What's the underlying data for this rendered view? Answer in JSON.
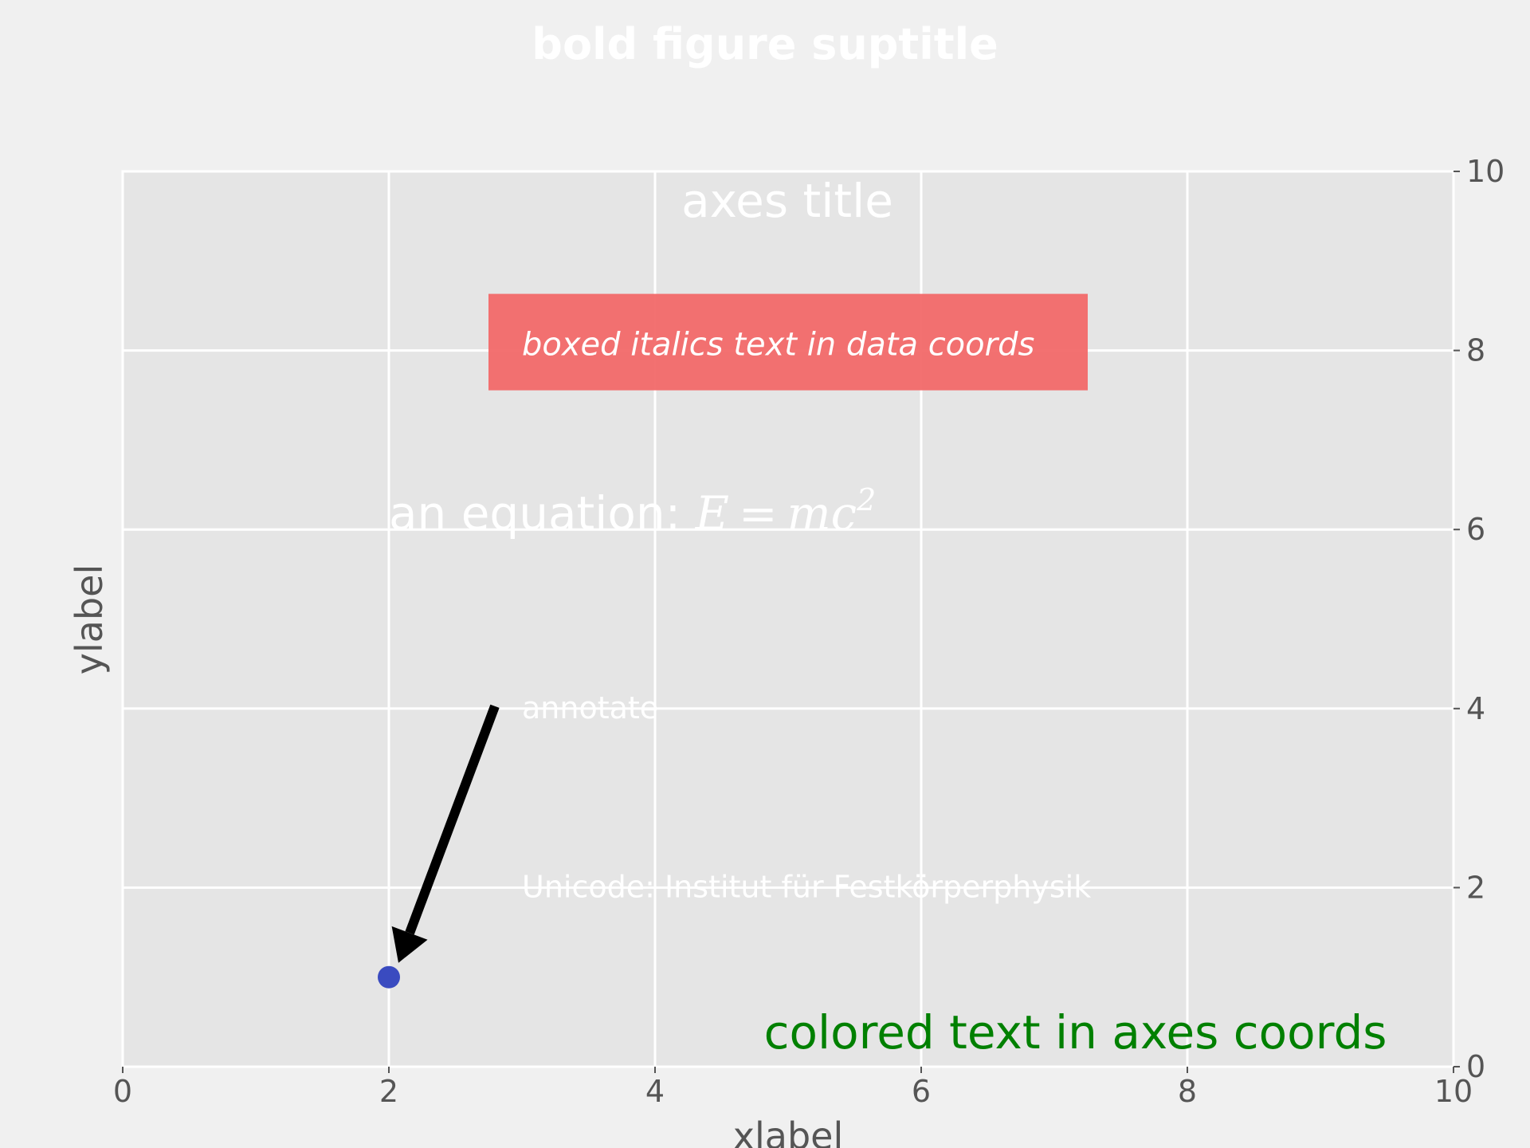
{
  "chart_data": {
    "type": "scatter",
    "suptitle": "bold figure suptitle",
    "title": "axes title",
    "xlabel": "xlabel",
    "ylabel": "ylabel",
    "xlim": [
      0,
      10
    ],
    "ylim": [
      0,
      10
    ],
    "x_ticks": [
      0,
      2,
      4,
      6,
      8,
      10
    ],
    "y_ticks": [
      0,
      2,
      4,
      6,
      8,
      10
    ],
    "x_tick_labels": [
      "0",
      "2",
      "4",
      "6",
      "8",
      "10"
    ],
    "y_tick_labels": [
      "0",
      "2",
      "4",
      "6",
      "8",
      "10"
    ],
    "y_axis_side": "right",
    "grid": true,
    "series": [
      {
        "points": [
          {
            "x": 2,
            "y": 1
          }
        ],
        "color": "#3a4bc0"
      }
    ],
    "annotations": {
      "boxed": {
        "text": "boxed italics text in data coords",
        "x": 3,
        "y": 8,
        "box_color": "#f36b6b",
        "text_color": "#ffffff"
      },
      "equation": {
        "prefix": "an equation: ",
        "lhs": "E",
        "equals": "=",
        "rhs": "mc",
        "superscript": "2",
        "x": 2,
        "y": 6,
        "color": "#ffffff"
      },
      "arrow_note": {
        "text": "annotate",
        "text_x": 3,
        "text_y": 4,
        "target_x": 2,
        "target_y": 1,
        "arrow_color": "#000000",
        "text_color": "#ffffff"
      },
      "unicode": {
        "text": "Unicode: Institut für Festkörperphysik",
        "x": 3,
        "y": 2,
        "color": "#ffffff"
      },
      "colored": {
        "text": "colored text in axes coords",
        "x_frac": 0.95,
        "y_frac": 0.01,
        "color": "#008000"
      }
    },
    "colors": {
      "figure_background": "#f0f0f0",
      "axes_background": "#e5e5e5",
      "grid": "#ffffff",
      "spine": "#ffffff",
      "tick_text": "#555555",
      "label_text": "#555555",
      "title_text": "#ffffff"
    }
  }
}
